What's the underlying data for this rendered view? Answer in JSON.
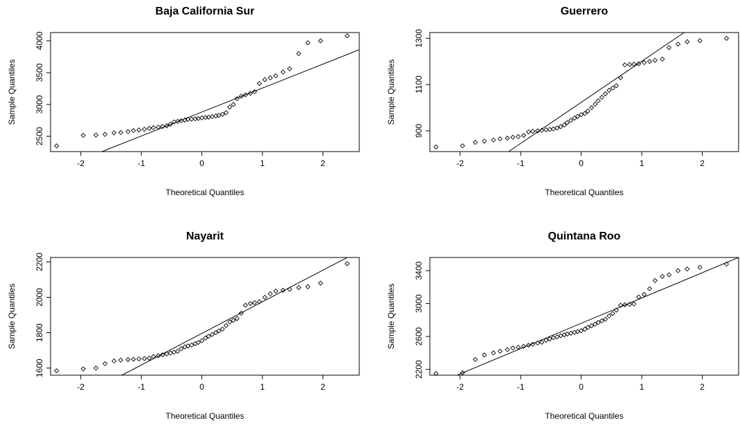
{
  "chart_data": [
    {
      "type": "scatter",
      "title": "Baja California Sur",
      "xlabel": "Theoretical Quantiles",
      "ylabel": "Sample Quantiles",
      "xlim": [
        -2.5,
        2.6
      ],
      "ylim": [
        2260,
        4130
      ],
      "xticks": [
        -2,
        -1,
        0,
        1,
        2
      ],
      "yticks": [
        2500,
        3000,
        3500,
        4000
      ],
      "qq_line": {
        "points": [
          [
            -1.65,
            2260
          ],
          [
            2.6,
            3860
          ]
        ]
      },
      "points": [
        [
          -2.4,
          2350
        ],
        [
          -1.96,
          2515
        ],
        [
          -1.75,
          2520
        ],
        [
          -1.6,
          2530
        ],
        [
          -1.45,
          2555
        ],
        [
          -1.34,
          2560
        ],
        [
          -1.22,
          2575
        ],
        [
          -1.13,
          2590
        ],
        [
          -1.04,
          2600
        ],
        [
          -0.95,
          2610
        ],
        [
          -0.87,
          2625
        ],
        [
          -0.8,
          2635
        ],
        [
          -0.72,
          2645
        ],
        [
          -0.65,
          2655
        ],
        [
          -0.58,
          2665
        ],
        [
          -0.52,
          2690
        ],
        [
          -0.46,
          2725
        ],
        [
          -0.4,
          2735
        ],
        [
          -0.34,
          2745
        ],
        [
          -0.28,
          2755
        ],
        [
          -0.23,
          2765
        ],
        [
          -0.17,
          2770
        ],
        [
          -0.11,
          2775
        ],
        [
          -0.06,
          2780
        ],
        [
          0.0,
          2790
        ],
        [
          0.06,
          2795
        ],
        [
          0.11,
          2800
        ],
        [
          0.17,
          2810
        ],
        [
          0.23,
          2820
        ],
        [
          0.28,
          2830
        ],
        [
          0.34,
          2845
        ],
        [
          0.4,
          2870
        ],
        [
          0.46,
          2960
        ],
        [
          0.52,
          3000
        ],
        [
          0.58,
          3090
        ],
        [
          0.65,
          3130
        ],
        [
          0.72,
          3150
        ],
        [
          0.8,
          3175
        ],
        [
          0.87,
          3200
        ],
        [
          0.95,
          3330
        ],
        [
          1.04,
          3390
        ],
        [
          1.13,
          3420
        ],
        [
          1.22,
          3450
        ],
        [
          1.34,
          3510
        ],
        [
          1.45,
          3560
        ],
        [
          1.6,
          3800
        ],
        [
          1.75,
          3970
        ],
        [
          1.96,
          4000
        ],
        [
          2.4,
          4080
        ]
      ]
    },
    {
      "type": "scatter",
      "title": "Guerrero",
      "xlabel": "Theoretical Quantiles",
      "ylabel": "Sample Quantiles",
      "xlim": [
        -2.5,
        2.6
      ],
      "ylim": [
        810,
        1325
      ],
      "xticks": [
        -2,
        -1,
        0,
        1,
        2
      ],
      "yticks": [
        900,
        1100,
        1300
      ],
      "qq_line": {
        "points": [
          [
            -1.2,
            810
          ],
          [
            1.7,
            1325
          ]
        ]
      },
      "points": [
        [
          -2.4,
          830
        ],
        [
          -1.96,
          835
        ],
        [
          -1.75,
          850
        ],
        [
          -1.6,
          855
        ],
        [
          -1.45,
          860
        ],
        [
          -1.34,
          865
        ],
        [
          -1.22,
          868
        ],
        [
          -1.13,
          872
        ],
        [
          -1.04,
          875
        ],
        [
          -0.95,
          880
        ],
        [
          -0.87,
          895
        ],
        [
          -0.8,
          898
        ],
        [
          -0.72,
          900
        ],
        [
          -0.65,
          902
        ],
        [
          -0.58,
          904
        ],
        [
          -0.52,
          906
        ],
        [
          -0.46,
          908
        ],
        [
          -0.4,
          912
        ],
        [
          -0.34,
          918
        ],
        [
          -0.28,
          925
        ],
        [
          -0.23,
          935
        ],
        [
          -0.17,
          945
        ],
        [
          -0.11,
          955
        ],
        [
          -0.06,
          962
        ],
        [
          0.0,
          970
        ],
        [
          0.06,
          975
        ],
        [
          0.11,
          985
        ],
        [
          0.17,
          1000
        ],
        [
          0.23,
          1015
        ],
        [
          0.28,
          1030
        ],
        [
          0.34,
          1045
        ],
        [
          0.4,
          1060
        ],
        [
          0.46,
          1075
        ],
        [
          0.52,
          1085
        ],
        [
          0.58,
          1095
        ],
        [
          0.65,
          1130
        ],
        [
          0.72,
          1185
        ],
        [
          0.8,
          1187
        ],
        [
          0.87,
          1188
        ],
        [
          0.95,
          1190
        ],
        [
          1.04,
          1195
        ],
        [
          1.13,
          1200
        ],
        [
          1.22,
          1205
        ],
        [
          1.34,
          1210
        ],
        [
          1.45,
          1260
        ],
        [
          1.6,
          1275
        ],
        [
          1.75,
          1285
        ],
        [
          1.96,
          1290
        ],
        [
          2.4,
          1300
        ]
      ]
    },
    {
      "type": "scatter",
      "title": "Nayarit",
      "xlabel": "Theoretical Quantiles",
      "ylabel": "Sample Quantiles",
      "xlim": [
        -2.5,
        2.6
      ],
      "ylim": [
        1560,
        2225
      ],
      "xticks": [
        -2,
        -1,
        0,
        1,
        2
      ],
      "yticks": [
        1600,
        1800,
        2000,
        2200
      ],
      "qq_line": {
        "points": [
          [
            -1.32,
            1560
          ],
          [
            2.4,
            2225
          ]
        ]
      },
      "points": [
        [
          -2.4,
          1585
        ],
        [
          -1.96,
          1595
        ],
        [
          -1.75,
          1600
        ],
        [
          -1.6,
          1625
        ],
        [
          -1.45,
          1640
        ],
        [
          -1.34,
          1645
        ],
        [
          -1.22,
          1648
        ],
        [
          -1.13,
          1650
        ],
        [
          -1.04,
          1652
        ],
        [
          -0.95,
          1654
        ],
        [
          -0.87,
          1656
        ],
        [
          -0.8,
          1665
        ],
        [
          -0.72,
          1670
        ],
        [
          -0.65,
          1675
        ],
        [
          -0.58,
          1680
        ],
        [
          -0.52,
          1685
        ],
        [
          -0.46,
          1690
        ],
        [
          -0.4,
          1695
        ],
        [
          -0.34,
          1710
        ],
        [
          -0.28,
          1720
        ],
        [
          -0.23,
          1725
        ],
        [
          -0.17,
          1730
        ],
        [
          -0.11,
          1738
        ],
        [
          -0.06,
          1745
        ],
        [
          0.0,
          1755
        ],
        [
          0.06,
          1770
        ],
        [
          0.11,
          1780
        ],
        [
          0.17,
          1790
        ],
        [
          0.23,
          1800
        ],
        [
          0.28,
          1810
        ],
        [
          0.34,
          1820
        ],
        [
          0.4,
          1840
        ],
        [
          0.46,
          1860
        ],
        [
          0.52,
          1870
        ],
        [
          0.58,
          1880
        ],
        [
          0.65,
          1910
        ],
        [
          0.72,
          1955
        ],
        [
          0.8,
          1965
        ],
        [
          0.87,
          1970
        ],
        [
          0.95,
          1975
        ],
        [
          1.04,
          2000
        ],
        [
          1.13,
          2020
        ],
        [
          1.22,
          2035
        ],
        [
          1.34,
          2040
        ],
        [
          1.45,
          2045
        ],
        [
          1.6,
          2055
        ],
        [
          1.75,
          2060
        ],
        [
          1.96,
          2080
        ],
        [
          2.4,
          2190
        ]
      ]
    },
    {
      "type": "scatter",
      "title": "Quintana Roo",
      "xlabel": "Theoretical Quantiles",
      "ylabel": "Sample Quantiles",
      "xlim": [
        -2.5,
        2.6
      ],
      "ylim": [
        2130,
        3560
      ],
      "xticks": [
        -2,
        -1,
        0,
        1,
        2
      ],
      "yticks": [
        2200,
        2600,
        3000,
        3400
      ],
      "qq_line": {
        "points": [
          [
            -2.05,
            2130
          ],
          [
            2.6,
            3560
          ]
        ]
      },
      "points": [
        [
          -2.4,
          2150
        ],
        [
          -1.96,
          2160
        ],
        [
          -1.75,
          2320
        ],
        [
          -1.6,
          2375
        ],
        [
          -1.45,
          2400
        ],
        [
          -1.34,
          2420
        ],
        [
          -1.22,
          2440
        ],
        [
          -1.13,
          2460
        ],
        [
          -1.04,
          2470
        ],
        [
          -0.95,
          2480
        ],
        [
          -0.87,
          2495
        ],
        [
          -0.8,
          2505
        ],
        [
          -0.72,
          2520
        ],
        [
          -0.65,
          2530
        ],
        [
          -0.58,
          2555
        ],
        [
          -0.52,
          2570
        ],
        [
          -0.46,
          2585
        ],
        [
          -0.4,
          2595
        ],
        [
          -0.34,
          2610
        ],
        [
          -0.28,
          2620
        ],
        [
          -0.23,
          2630
        ],
        [
          -0.17,
          2640
        ],
        [
          -0.11,
          2650
        ],
        [
          -0.06,
          2660
        ],
        [
          0.0,
          2670
        ],
        [
          0.06,
          2690
        ],
        [
          0.11,
          2710
        ],
        [
          0.17,
          2730
        ],
        [
          0.23,
          2750
        ],
        [
          0.28,
          2770
        ],
        [
          0.34,
          2790
        ],
        [
          0.4,
          2810
        ],
        [
          0.46,
          2850
        ],
        [
          0.52,
          2880
        ],
        [
          0.58,
          2920
        ],
        [
          0.65,
          2980
        ],
        [
          0.72,
          2985
        ],
        [
          0.8,
          2990
        ],
        [
          0.87,
          2995
        ],
        [
          0.95,
          3080
        ],
        [
          1.04,
          3110
        ],
        [
          1.13,
          3180
        ],
        [
          1.22,
          3280
        ],
        [
          1.34,
          3330
        ],
        [
          1.45,
          3350
        ],
        [
          1.6,
          3400
        ],
        [
          1.75,
          3420
        ],
        [
          1.96,
          3440
        ],
        [
          2.4,
          3480
        ]
      ]
    }
  ]
}
